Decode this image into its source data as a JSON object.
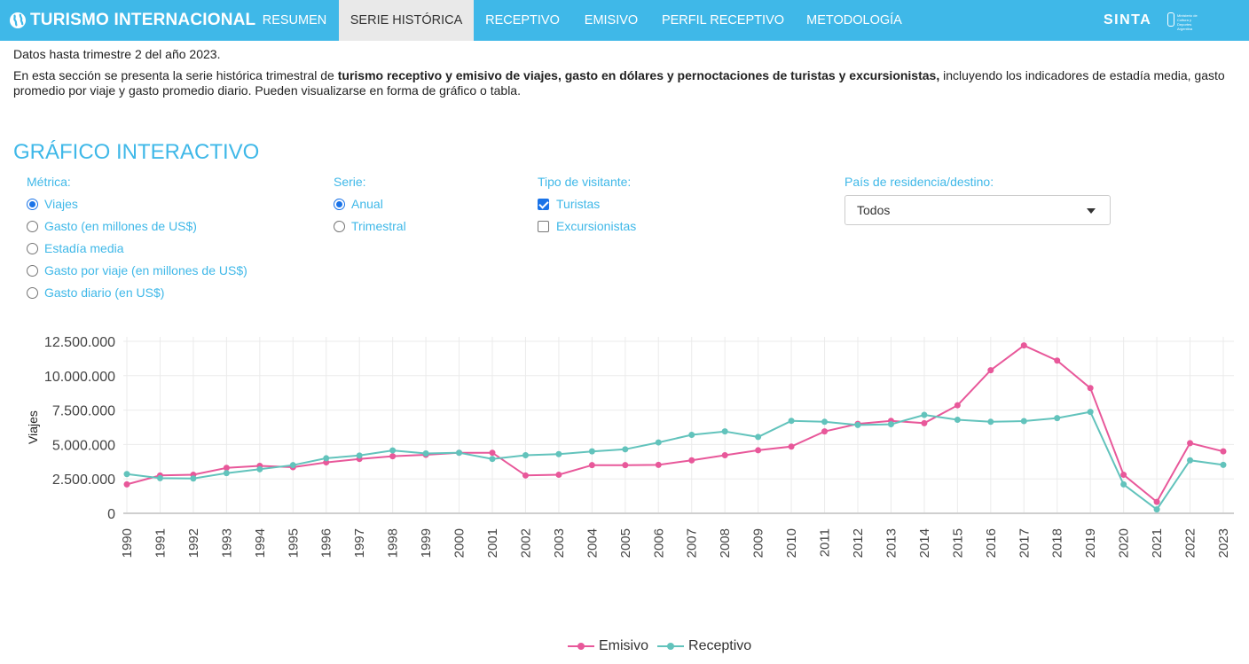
{
  "header": {
    "brand": "TURISMO INTERNACIONAL",
    "nav": [
      {
        "label": "RESUMEN",
        "active": false
      },
      {
        "label": "SERIE HISTÓRICA",
        "active": true
      },
      {
        "label": "RECEPTIVO",
        "active": false
      },
      {
        "label": "EMISIVO",
        "active": false
      },
      {
        "label": "PERFIL RECEPTIVO",
        "active": false
      },
      {
        "label": "METODOLOGÍA",
        "active": false
      }
    ],
    "sinta": "SINTA",
    "ministerio": "Ministerio de Cultura y Deportes Argentina"
  },
  "intro": {
    "datos": "Datos hasta trimestre 2 del año 2023.",
    "text_before": "En esta sección se presenta la serie histórica trimestral de ",
    "text_bold": "turismo receptivo y emisivo de viajes, gasto en dólares y pernoctaciones de turistas y excursionistas,",
    "text_after": " incluyendo los indicadores de estadía media, gasto promedio por viaje y gasto promedio diario. Pueden visualizarse en forma de gráfico o tabla."
  },
  "section_title": "GRÁFICO INTERACTIVO",
  "controls": {
    "metrica": {
      "label": "Métrica:",
      "options": [
        "Viajes",
        "Gasto (en millones de US$)",
        "Estadía media",
        "Gasto por viaje (en millones de US$)",
        "Gasto diario (en US$)"
      ],
      "selected": 0
    },
    "serie": {
      "label": "Serie:",
      "options": [
        "Anual",
        "Trimestral"
      ],
      "selected": 0
    },
    "tipo": {
      "label": "Tipo de visitante:",
      "options": [
        "Turistas",
        "Excursionistas"
      ],
      "checked": [
        true,
        false
      ]
    },
    "pais": {
      "label": "País de residencia/destino:",
      "value": "Todos"
    }
  },
  "chart_data": {
    "type": "line",
    "ylabel": "Viajes",
    "ylim": [
      0,
      12500000
    ],
    "yticks": [
      0,
      2500000,
      5000000,
      7500000,
      10000000,
      12500000
    ],
    "ytick_labels": [
      "0",
      "2.500.000",
      "5.000.000",
      "7.500.000",
      "10.000.000",
      "12.500.000"
    ],
    "grid": true,
    "legend_position": "bottom-center",
    "x": [
      "1990",
      "1991",
      "1992",
      "1993",
      "1994",
      "1995",
      "1996",
      "1997",
      "1998",
      "1999",
      "2000",
      "2001",
      "2002",
      "2003",
      "2004",
      "2005",
      "2006",
      "2007",
      "2008",
      "2009",
      "2010",
      "2011",
      "2012",
      "2013",
      "2014",
      "2015",
      "2016",
      "2017",
      "2018",
      "2019",
      "2020",
      "2021",
      "2022",
      "2023"
    ],
    "series": [
      {
        "name": "Emisivo",
        "color": "#e8589a",
        "values": [
          2100000,
          2750000,
          2800000,
          3300000,
          3450000,
          3350000,
          3700000,
          3950000,
          4150000,
          4250000,
          4400000,
          4400000,
          2750000,
          2800000,
          3500000,
          3500000,
          3520000,
          3850000,
          4220000,
          4580000,
          4850000,
          5950000,
          6500000,
          6720000,
          6550000,
          7850000,
          10400000,
          12200000,
          11100000,
          9100000,
          2800000,
          830000,
          5100000,
          4500000
        ]
      },
      {
        "name": "Receptivo",
        "color": "#62c3bc",
        "values": [
          2850000,
          2550000,
          2530000,
          2920000,
          3200000,
          3500000,
          4000000,
          4200000,
          4570000,
          4350000,
          4400000,
          3950000,
          4220000,
          4300000,
          4500000,
          4650000,
          5150000,
          5700000,
          5950000,
          5550000,
          6720000,
          6650000,
          6420000,
          6470000,
          7150000,
          6800000,
          6650000,
          6700000,
          6920000,
          7370000,
          2100000,
          280000,
          3850000,
          3520000
        ]
      }
    ]
  }
}
